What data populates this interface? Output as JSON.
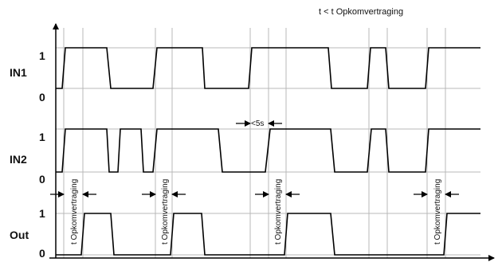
{
  "caption": "t < t Opkomvertraging",
  "signals": [
    {
      "name": "IN1",
      "high": "1",
      "low": "0"
    },
    {
      "name": "IN2",
      "high": "1",
      "low": "0"
    },
    {
      "name": "Out",
      "high": "1",
      "low": "0"
    }
  ],
  "delay_label": "t Opkomvertraging",
  "gap_label": "<5s"
}
